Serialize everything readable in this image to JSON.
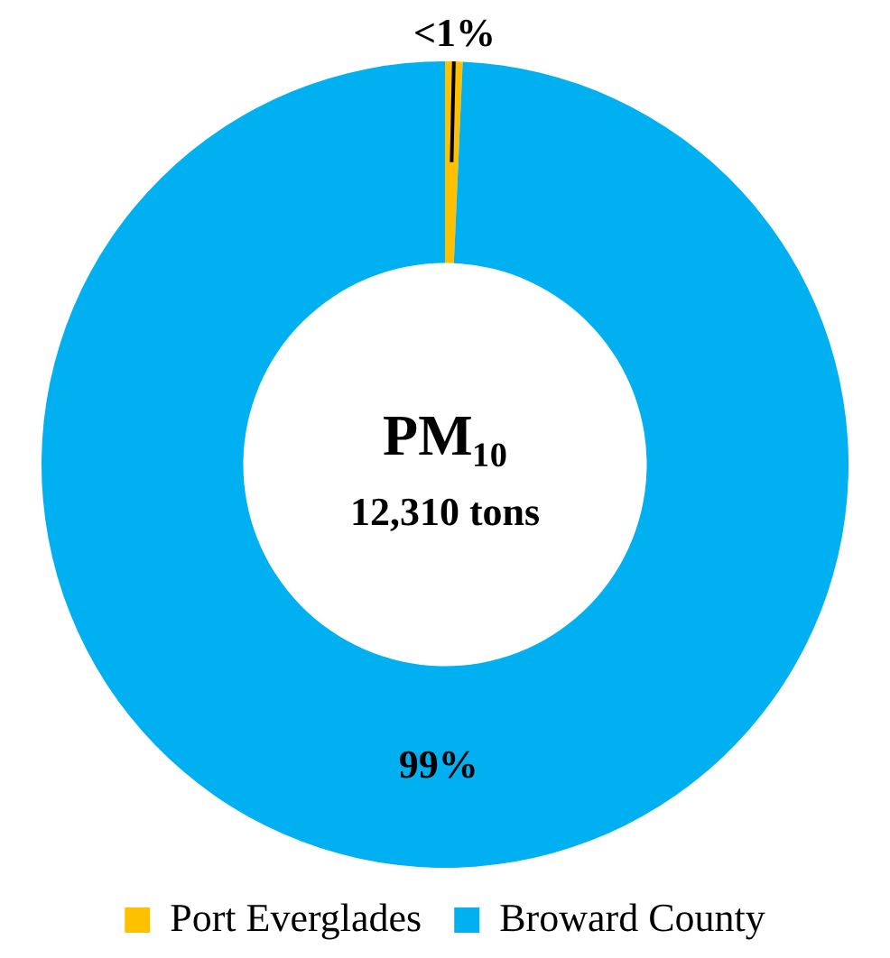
{
  "chart_data": {
    "type": "donut",
    "title": "PM₁₀",
    "subtitle": "12,310 tons",
    "categories": [
      "Port Everglades",
      "Broward County"
    ],
    "values": [
      0.7,
      99.3
    ],
    "value_labels": [
      "<1%",
      "99%"
    ],
    "colors": [
      "#ffc000",
      "#00b0f0"
    ],
    "legend": "bottom"
  }
}
